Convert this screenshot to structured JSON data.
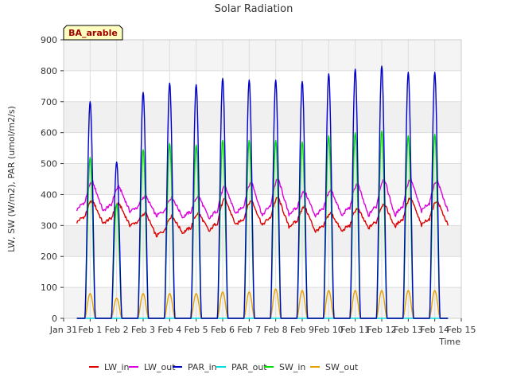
{
  "chart_data": {
    "type": "line",
    "title": "Solar Radiation",
    "xlabel": "Time",
    "ylabel": "LW, SW (W/m2), PAR (umol/m2/s)",
    "station_badge": "BA_arable",
    "x_ticks": [
      "Jan 31",
      "Feb 1",
      "Feb 2",
      "Feb 3",
      "Feb 4",
      "Feb 5",
      "Feb 6",
      "Feb 7",
      "Feb 8",
      "Feb 9",
      "Feb 10",
      "Feb 11",
      "Feb 12",
      "Feb 13",
      "Feb 14",
      "Feb 15"
    ],
    "y_ticks": [
      0,
      100,
      200,
      300,
      400,
      500,
      600,
      700,
      800,
      900
    ],
    "xlim": [
      0,
      15
    ],
    "ylim": [
      0,
      900
    ],
    "grid": true,
    "legend_position": "bottom",
    "days": [
      "Feb 1",
      "Feb 2",
      "Feb 3",
      "Feb 4",
      "Feb 5",
      "Feb 6",
      "Feb 7",
      "Feb 8",
      "Feb 9",
      "Feb 10",
      "Feb 11",
      "Feb 12",
      "Feb 13",
      "Feb 14"
    ],
    "series": [
      {
        "name": "LW_in",
        "color": "#dd0000",
        "daily_peak": [
          380,
          370,
          340,
          330,
          340,
          385,
          380,
          390,
          360,
          340,
          355,
          370,
          390,
          380
        ],
        "night_min": [
          310,
          305,
          300,
          265,
          275,
          280,
          300,
          300,
          295,
          280,
          280,
          290,
          295,
          300
        ]
      },
      {
        "name": "LW_out",
        "color": "#dd00dd",
        "daily_peak": [
          440,
          425,
          395,
          390,
          395,
          425,
          440,
          450,
          410,
          415,
          435,
          450,
          450,
          445
        ],
        "night_min": [
          350,
          345,
          345,
          330,
          325,
          320,
          335,
          330,
          335,
          330,
          330,
          330,
          330,
          345
        ]
      },
      {
        "name": "PAR_in",
        "color": "#0000cc",
        "daily_peak": [
          700,
          505,
          730,
          760,
          755,
          775,
          770,
          770,
          765,
          790,
          805,
          815,
          795,
          795
        ]
      },
      {
        "name": "PAR_out",
        "color": "#00dddd",
        "daily_peak": [
          0,
          0,
          0,
          0,
          0,
          0,
          0,
          0,
          0,
          0,
          0,
          0,
          0,
          0
        ]
      },
      {
        "name": "SW_in",
        "color": "#00dd00",
        "daily_peak": [
          520,
          370,
          545,
          565,
          560,
          575,
          575,
          575,
          570,
          590,
          600,
          605,
          590,
          595
        ]
      },
      {
        "name": "SW_out",
        "color": "#e8a000",
        "daily_peak": [
          80,
          65,
          80,
          80,
          80,
          85,
          85,
          95,
          90,
          90,
          90,
          90,
          90,
          90
        ]
      }
    ]
  }
}
